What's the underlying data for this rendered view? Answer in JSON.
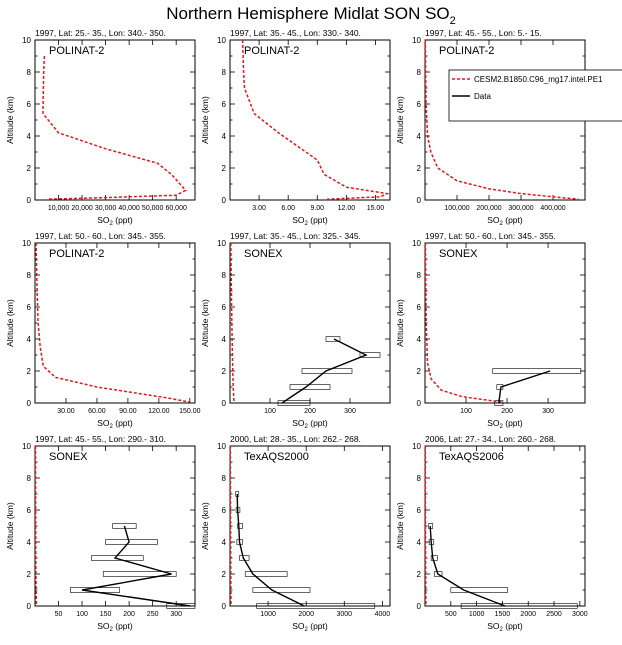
{
  "title_main": "Northern Hemisphere Midlat SON SO",
  "title_sub": "2",
  "legend": {
    "model_label": "CESM2.B1850.C96_mg17.intel.PE1",
    "data_label": "Data"
  },
  "colors": {
    "model": "#e8141b",
    "data": "#000000"
  },
  "chart_data": [
    {
      "type": "line",
      "subtitle": "1997, Lat: 25.- 35., Lon: 340.- 350.",
      "campaign": "POLINAT-2",
      "xlabel": "SO2 (ppt)",
      "ylabel": "Altitude (km)",
      "xlim": [
        0,
        68000
      ],
      "ylim": [
        0,
        10
      ],
      "xticks": [
        10000,
        20000,
        30000,
        40000,
        50000,
        60000
      ],
      "xticklabels": [
        "10,000",
        "20,000",
        "30,000",
        "40,000",
        "50,000",
        "60,000"
      ],
      "yticks": [
        0,
        2,
        4,
        6,
        8,
        10
      ],
      "model": [
        [
          4000,
          9
        ],
        [
          3700,
          8
        ],
        [
          3500,
          6.5
        ],
        [
          3400,
          5.4
        ],
        [
          10000,
          4.2
        ],
        [
          30000,
          3.2
        ],
        [
          52000,
          2.3
        ],
        [
          58000,
          1.6
        ],
        [
          64000,
          0.6
        ],
        [
          60000,
          0.3
        ],
        [
          30000,
          0.15
        ],
        [
          5000,
          0.05
        ]
      ]
    },
    {
      "type": "line",
      "subtitle": "1997, Lat: 35.- 45., Lon: 330.- 340.",
      "campaign": "POLINAT-2",
      "xlabel": "SO2 (ppt)",
      "ylabel": "Altitude (km)",
      "xlim": [
        0,
        16.5
      ],
      "ylim": [
        0,
        10
      ],
      "xticks": [
        3,
        6,
        9,
        12,
        15
      ],
      "xticklabels": [
        "3.00",
        "6.00",
        "9.00",
        "12.00",
        "15.00"
      ],
      "yticks": [
        0,
        2,
        4,
        6,
        8,
        10
      ],
      "model": [
        [
          1.3,
          10
        ],
        [
          1.4,
          8
        ],
        [
          1.5,
          7
        ],
        [
          2.5,
          5.4
        ],
        [
          5,
          4.2
        ],
        [
          9,
          2.5
        ],
        [
          9.7,
          1.6
        ],
        [
          12,
          0.8
        ],
        [
          16.2,
          0.4
        ],
        [
          15.5,
          0.2
        ],
        [
          10,
          0.05
        ]
      ]
    },
    {
      "type": "line",
      "subtitle": "1997, Lat: 45.- 55., Lon: 5.- 15.",
      "campaign": "POLINAT-2",
      "xlabel": "SO2 (ppt)",
      "ylabel": "Altitude (km)",
      "xlim": [
        0,
        500000
      ],
      "ylim": [
        0,
        10
      ],
      "xticks": [
        100000,
        200000,
        300000,
        400000
      ],
      "xticklabels": [
        "100,000",
        "200,000",
        "300,000",
        "400,000"
      ],
      "yticks": [
        0,
        2,
        4,
        6,
        8,
        10
      ],
      "model": [
        [
          1000,
          10
        ],
        [
          3000,
          6
        ],
        [
          8000,
          4
        ],
        [
          18000,
          3
        ],
        [
          40000,
          2
        ],
        [
          100000,
          1.2
        ],
        [
          200000,
          0.7
        ],
        [
          300000,
          0.4
        ],
        [
          400000,
          0.2
        ],
        [
          480000,
          0.05
        ]
      ]
    },
    {
      "type": "line",
      "subtitle": "1997, Lat: 50.- 60., Lon: 345.- 355.",
      "campaign": "POLINAT-2",
      "xlabel": "SO2 (ppt)",
      "ylabel": "Altitude (km)",
      "xlim": [
        0,
        155
      ],
      "ylim": [
        0,
        10
      ],
      "xticks": [
        30,
        60,
        90,
        120,
        150
      ],
      "xticklabels": [
        "30.00",
        "60.00",
        "90.00",
        "120.00",
        "150.00"
      ],
      "yticks": [
        0,
        2,
        4,
        6,
        8,
        10
      ],
      "model": [
        [
          1,
          10
        ],
        [
          2,
          7
        ],
        [
          3,
          5
        ],
        [
          5,
          3.5
        ],
        [
          8,
          2.3
        ],
        [
          20,
          1.6
        ],
        [
          60,
          1
        ],
        [
          100,
          0.6
        ],
        [
          130,
          0.3
        ],
        [
          150,
          0.05
        ]
      ]
    },
    {
      "type": "line",
      "subtitle": "1997, Lat: 35.- 45., Lon: 325.- 345.",
      "campaign": "SONEX",
      "xlabel": "SO2 (ppt)",
      "ylabel": "Altitude (km)",
      "xlim": [
        0,
        400
      ],
      "ylim": [
        0,
        10
      ],
      "xticks": [
        100,
        200,
        300
      ],
      "xticklabels": [
        "100",
        "200",
        "300"
      ],
      "yticks": [
        0,
        2,
        4,
        6,
        8,
        10
      ],
      "model": [
        [
          2,
          10
        ],
        [
          4,
          6
        ],
        [
          6,
          3
        ],
        [
          8,
          1
        ],
        [
          10,
          0.05
        ]
      ],
      "data": [
        [
          130,
          0
        ],
        [
          190,
          1
        ],
        [
          240,
          2
        ],
        [
          340,
          3
        ],
        [
          260,
          4
        ]
      ],
      "data_range": [
        [
          120,
          200
        ],
        [
          150,
          250
        ],
        [
          180,
          305
        ],
        [
          325,
          375
        ],
        [
          240,
          275
        ]
      ]
    },
    {
      "type": "line",
      "subtitle": "1997, Lat: 50.- 60., Lon: 345.- 355.",
      "campaign": "SONEX",
      "xlabel": "SO2 (ppt)",
      "ylabel": "Altitude (km)",
      "xlim": [
        0,
        390
      ],
      "ylim": [
        0,
        10
      ],
      "xticks": [
        100,
        200,
        300
      ],
      "xticklabels": [
        "100",
        "200",
        "300"
      ],
      "yticks": [
        0,
        2,
        4,
        6,
        8,
        10
      ],
      "model": [
        [
          1,
          10
        ],
        [
          3,
          5
        ],
        [
          6,
          2.5
        ],
        [
          15,
          1.5
        ],
        [
          40,
          0.8
        ],
        [
          90,
          0.4
        ],
        [
          160,
          0.15
        ],
        [
          190,
          0.05
        ]
      ],
      "data": [
        [
          180,
          0
        ],
        [
          185,
          1
        ],
        [
          305,
          2
        ]
      ],
      "data_range": [
        [
          170,
          190
        ],
        [
          175,
          190
        ],
        [
          165,
          380
        ]
      ]
    },
    {
      "type": "line",
      "subtitle": "1997, Lat: 45.- 55., Lon: 290.- 310.",
      "campaign": "SONEX",
      "xlabel": "SO2 (ppt)",
      "ylabel": "Altitude (km)",
      "xlim": [
        0,
        340
      ],
      "ylim": [
        0,
        10
      ],
      "xticks": [
        50,
        100,
        150,
        200,
        250,
        300
      ],
      "xticklabels": [
        "50",
        "100",
        "150",
        "200",
        "250",
        "300"
      ],
      "yticks": [
        0,
        2,
        4,
        6,
        8,
        10
      ],
      "model": [
        [
          1,
          10
        ],
        [
          1.5,
          5
        ],
        [
          2,
          2
        ],
        [
          3,
          0.05
        ]
      ],
      "data": [
        [
          330,
          0
        ],
        [
          100,
          1
        ],
        [
          290,
          2
        ],
        [
          170,
          3
        ],
        [
          200,
          4
        ],
        [
          190,
          5
        ]
      ],
      "data_range": [
        [
          280,
          340
        ],
        [
          75,
          180
        ],
        [
          145,
          300
        ],
        [
          120,
          230
        ],
        [
          150,
          260
        ],
        [
          165,
          215
        ]
      ]
    },
    {
      "type": "line",
      "subtitle": "2000, Lat: 28.- 35., Lon: 262.- 268.",
      "campaign": "TexAQS2000",
      "xlabel": "SO2 (ppt)",
      "ylabel": "Altitude (km)",
      "xlim": [
        0,
        4200
      ],
      "ylim": [
        0,
        10
      ],
      "xticks": [
        1000,
        2000,
        3000,
        4000
      ],
      "xticklabels": [
        "1000",
        "2000",
        "3000",
        "4000"
      ],
      "yticks": [
        0,
        2,
        4,
        6,
        8,
        10
      ],
      "model": [
        [
          8,
          10
        ],
        [
          12,
          6
        ],
        [
          18,
          3
        ],
        [
          25,
          0.05
        ]
      ],
      "data": [
        [
          1950,
          0
        ],
        [
          1100,
          1
        ],
        [
          600,
          2
        ],
        [
          350,
          3
        ],
        [
          250,
          4
        ],
        [
          230,
          5
        ],
        [
          200,
          6
        ],
        [
          190,
          7
        ]
      ],
      "data_range": [
        [
          700,
          3800
        ],
        [
          600,
          2100
        ],
        [
          400,
          1500
        ],
        [
          250,
          500
        ],
        [
          180,
          330
        ],
        [
          200,
          330
        ],
        [
          160,
          260
        ],
        [
          150,
          230
        ]
      ]
    },
    {
      "type": "line",
      "subtitle": "2006, Lat: 27.- 34., Lon: 260.- 268.",
      "campaign": "TexAQS2006",
      "xlabel": "SO2 (ppt)",
      "ylabel": "Altitude (km)",
      "xlim": [
        0,
        3100
      ],
      "ylim": [
        0,
        10
      ],
      "xticks": [
        500,
        1000,
        1500,
        2000,
        2500,
        3000
      ],
      "xticklabels": [
        "500",
        "1000",
        "1500",
        "2000",
        "2500",
        "3000"
      ],
      "yticks": [
        0,
        2,
        4,
        6,
        8,
        10
      ],
      "model": [
        [
          5,
          10
        ],
        [
          8,
          6
        ],
        [
          12,
          3
        ],
        [
          18,
          0.05
        ]
      ],
      "data": [
        [
          1550,
          0
        ],
        [
          750,
          1
        ],
        [
          250,
          2
        ],
        [
          150,
          3
        ],
        [
          120,
          4
        ],
        [
          100,
          5
        ]
      ],
      "data_range": [
        [
          700,
          2950
        ],
        [
          500,
          1600
        ],
        [
          180,
          330
        ],
        [
          120,
          240
        ],
        [
          80,
          170
        ],
        [
          70,
          150
        ]
      ]
    }
  ]
}
